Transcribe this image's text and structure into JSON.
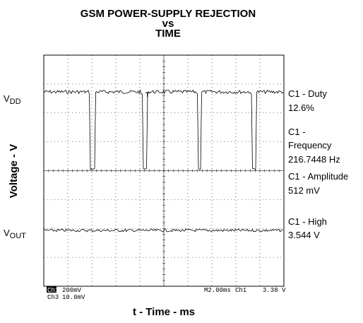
{
  "title": [
    "GSM POWER-SUPPLY REJECTION",
    "vs",
    "TIME"
  ],
  "y_label": "Voltage - V",
  "x_label": "t - Time - ms",
  "traces": [
    {
      "main": "V",
      "sub": "DD"
    },
    {
      "main": "V",
      "sub": "OUT"
    }
  ],
  "measurements": [
    {
      "lines": [
        "C1 - Duty",
        "12.6%"
      ]
    },
    {
      "lines": [
        "C1 -",
        "Frequency",
        "216.7448 Hz"
      ]
    },
    {
      "lines": [
        "C1 - Amplitude",
        "512 mV"
      ]
    },
    {
      "lines": [
        "C1 - High",
        "3.544 V"
      ]
    }
  ],
  "status": {
    "ch1": "Ch1",
    "ch1_scale": "200mV",
    "ch3": "Ch3",
    "ch3_scale": "10.0mV",
    "timebase": "M2.00ms",
    "trigger_source": "Ch1",
    "trigger_level": "3.38 V"
  }
}
